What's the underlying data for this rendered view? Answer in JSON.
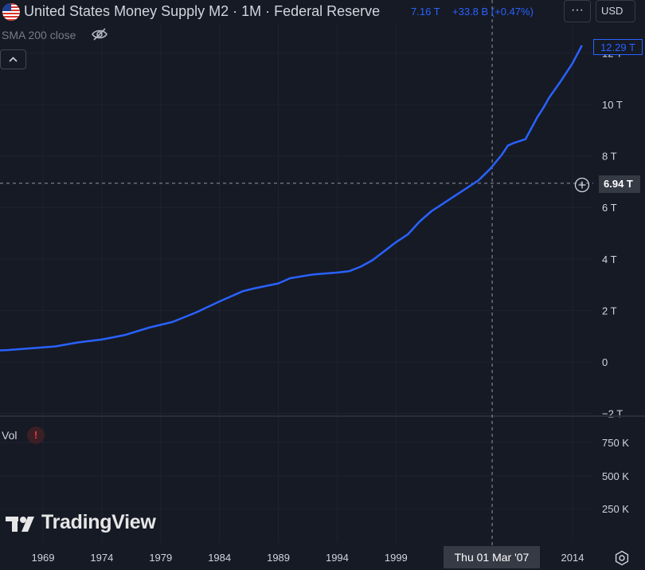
{
  "header": {
    "title": "United States Money Supply M2 · 1M · Federal Reserve",
    "value": "7.16 T",
    "change": "+33.8 B (+0.47%)",
    "more_icon": "more-horizontal-icon",
    "currency": "USD"
  },
  "indicator": {
    "label": "SMA 200 close",
    "visibility_icon": "eye-off-icon"
  },
  "price_axis": {
    "ticks": [
      "12 T",
      "10 T",
      "8 T",
      "6 T",
      "4 T",
      "2 T",
      "0",
      "−2 T"
    ],
    "last_value_label": "12.29 T",
    "crosshair_value_label": "6.94 T"
  },
  "volume_pane": {
    "label": "Vol",
    "warning_icon": "warning-icon",
    "ticks": [
      "750 K",
      "500 K",
      "250 K"
    ]
  },
  "time_axis": {
    "ticks": [
      "1969",
      "1974",
      "1979",
      "1984",
      "1989",
      "1994",
      "1999",
      "2014"
    ],
    "crosshair_date_label": "Thu 01 Mar '07",
    "settings_icon": "settings-icon"
  },
  "branding": {
    "logo_text": "TradingView"
  },
  "colors": {
    "line": "#2962ff",
    "background": "#161a25",
    "grid": "#232632"
  },
  "chart_data": {
    "type": "line",
    "title": "United States Money Supply M2 · 1M · Federal Reserve",
    "series": [
      {
        "values_unit": "T",
        "x": [
          1966.0,
          1968.0,
          1970.0,
          1972.0,
          1974.0,
          1976.0,
          1978.0,
          1980.0,
          1982.0,
          1984.0,
          1986.0,
          1987.0,
          1989.0,
          1990.0,
          1992.0,
          1994.0,
          1995.0,
          1996.0,
          1997.0,
          1998.0,
          1999.0,
          2000.0,
          2001.0,
          2002.0,
          2003.0,
          2004.0,
          2005.0,
          2006.0,
          2007.0,
          2008.0,
          2008.5,
          2009.0,
          2010.0,
          2011.0,
          2011.5,
          2012.0,
          2013.0,
          2014.0,
          2014.8
        ],
        "y": [
          0.46,
          0.53,
          0.6,
          0.76,
          0.87,
          1.05,
          1.33,
          1.55,
          1.92,
          2.35,
          2.75,
          2.86,
          3.05,
          3.25,
          3.4,
          3.47,
          3.52,
          3.7,
          3.95,
          4.3,
          4.65,
          4.95,
          5.45,
          5.85,
          6.15,
          6.45,
          6.75,
          7.05,
          7.5,
          8.05,
          8.4,
          8.5,
          8.65,
          9.5,
          9.85,
          10.25,
          10.9,
          11.6,
          12.29
        ]
      }
    ],
    "yrange": [
      -2,
      12.3
    ],
    "xrange": [
      1965.5,
      2015
    ],
    "ylim": [
      -2,
      12.3
    ],
    "y_ticks": [
      12,
      10,
      8,
      6,
      4,
      2,
      0,
      -2
    ],
    "x_ticks": [
      1969,
      1974,
      1979,
      1984,
      1989,
      1994,
      1999,
      2014
    ],
    "grid": true,
    "crosshair": {
      "x": 2007.17,
      "y": 6.94
    },
    "last_value": 12.29
  }
}
